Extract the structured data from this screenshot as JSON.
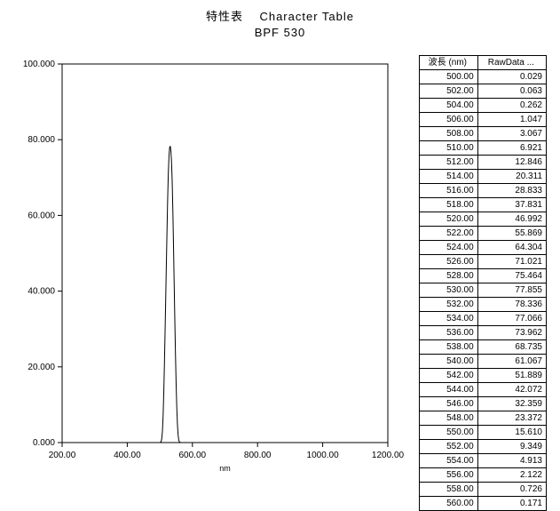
{
  "title": {
    "jp": "特性表",
    "en": "Character Table",
    "sub": "BPF 530"
  },
  "chart": {
    "type": "line",
    "background_color": "#ffffff",
    "axis_color": "#000000",
    "tick_color": "#000000",
    "line_color": "#000000",
    "line_width": 1,
    "plot_border": true,
    "xlabel": "nm",
    "xlabel_fontsize": 9,
    "tick_fontsize": 10,
    "xlim": [
      200,
      1200
    ],
    "xticks": [
      200,
      400,
      600,
      800,
      1000,
      1200
    ],
    "xtick_labels": [
      "200.00",
      "400.00",
      "600.00",
      "800.00",
      "1000.00",
      "1200.00"
    ],
    "ylim": [
      0,
      100
    ],
    "yticks": [
      0,
      20,
      40,
      60,
      80,
      100
    ],
    "ytick_labels": [
      "0.000",
      "20.000",
      "40.000",
      "60.000",
      "80.000",
      "100.000"
    ],
    "grid": false,
    "series": [
      {
        "x": [
          200,
          300,
          400,
          450,
          480,
          490,
          496,
          500,
          502,
          504,
          506,
          508,
          510,
          512,
          514,
          516,
          518,
          520,
          522,
          524,
          526,
          528,
          530,
          532,
          534,
          536,
          538,
          540,
          542,
          544,
          546,
          548,
          550,
          552,
          554,
          556,
          558,
          560,
          564,
          570,
          580,
          600,
          650,
          700,
          800,
          900,
          1000,
          1100,
          1200
        ],
        "y": [
          0,
          0,
          0,
          0,
          0,
          0,
          0,
          0.029,
          0.063,
          0.262,
          1.047,
          3.067,
          6.921,
          12.846,
          20.311,
          28.833,
          37.831,
          46.992,
          55.869,
          64.304,
          71.021,
          75.464,
          77.855,
          78.336,
          77.066,
          73.962,
          68.735,
          61.067,
          51.889,
          42.072,
          32.359,
          23.372,
          15.61,
          9.349,
          4.913,
          2.122,
          0.726,
          0.171,
          0,
          0,
          0,
          0,
          0,
          0,
          0,
          0,
          0,
          0,
          0
        ]
      }
    ]
  },
  "table": {
    "columns": [
      "波長 (nm)",
      "RawData ..."
    ],
    "rows": [
      [
        "500.00",
        "0.029"
      ],
      [
        "502.00",
        "0.063"
      ],
      [
        "504.00",
        "0.262"
      ],
      [
        "506.00",
        "1.047"
      ],
      [
        "508.00",
        "3.067"
      ],
      [
        "510.00",
        "6.921"
      ],
      [
        "512.00",
        "12.846"
      ],
      [
        "514.00",
        "20.311"
      ],
      [
        "516.00",
        "28.833"
      ],
      [
        "518.00",
        "37.831"
      ],
      [
        "520.00",
        "46.992"
      ],
      [
        "522.00",
        "55.869"
      ],
      [
        "524.00",
        "64.304"
      ],
      [
        "526.00",
        "71.021"
      ],
      [
        "528.00",
        "75.464"
      ],
      [
        "530.00",
        "77.855"
      ],
      [
        "532.00",
        "78.336"
      ],
      [
        "534.00",
        "77.066"
      ],
      [
        "536.00",
        "73.962"
      ],
      [
        "538.00",
        "68.735"
      ],
      [
        "540.00",
        "61.067"
      ],
      [
        "542.00",
        "51.889"
      ],
      [
        "544.00",
        "42.072"
      ],
      [
        "546.00",
        "32.359"
      ],
      [
        "548.00",
        "23.372"
      ],
      [
        "550.00",
        "15.610"
      ],
      [
        "552.00",
        "9.349"
      ],
      [
        "554.00",
        "4.913"
      ],
      [
        "556.00",
        "2.122"
      ],
      [
        "558.00",
        "0.726"
      ],
      [
        "560.00",
        "0.171"
      ]
    ]
  }
}
